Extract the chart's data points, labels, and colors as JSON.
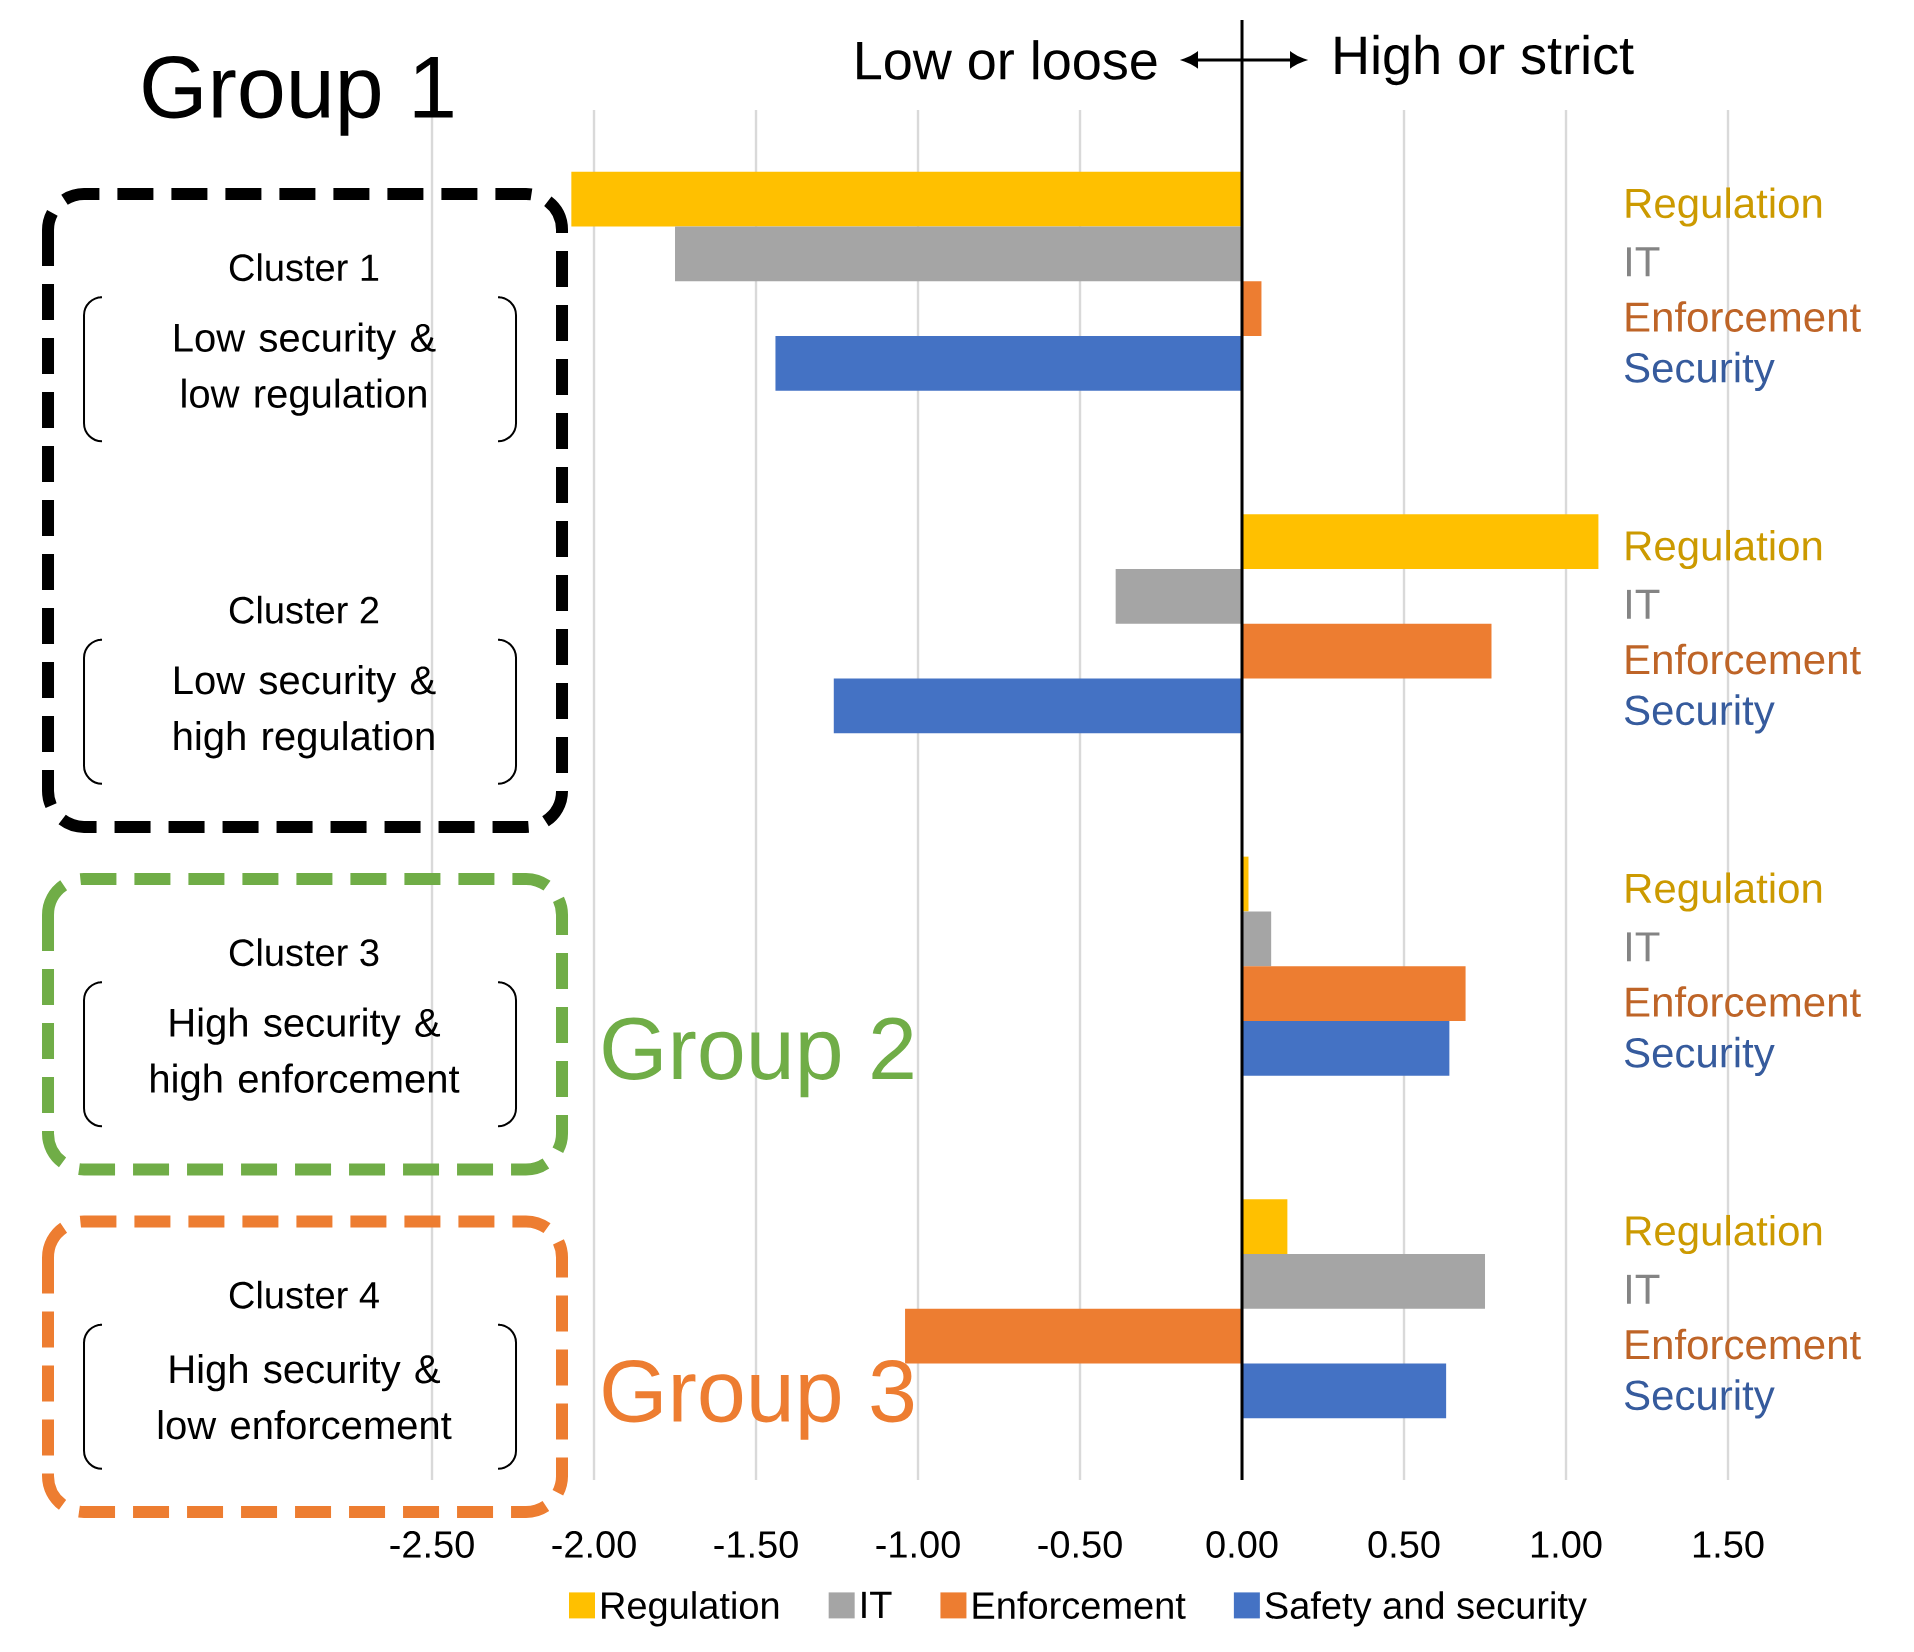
{
  "chart_data": {
    "type": "bar",
    "orientation": "horizontal",
    "categories": [
      "Cluster 1",
      "Cluster 2",
      "Cluster 3",
      "Cluster 4"
    ],
    "series": [
      {
        "name": "Regulation",
        "color": "#ffc000",
        "values": [
          -2.07,
          1.1,
          0.02,
          0.14
        ]
      },
      {
        "name": "IT",
        "color": "#a5a5a5",
        "values": [
          -1.75,
          -0.39,
          0.09,
          0.75
        ]
      },
      {
        "name": "Enforcement",
        "color": "#ed7d31",
        "values": [
          0.06,
          0.77,
          0.69,
          -1.04
        ]
      },
      {
        "name": "Safety and security",
        "color": "#4472c4",
        "values": [
          -1.44,
          -1.26,
          0.64,
          0.63
        ]
      }
    ],
    "xlim": [
      -2.5,
      1.5
    ],
    "xticks": [
      {
        "value": -2.5,
        "label": "-2.50"
      },
      {
        "value": -2.0,
        "label": "-2.00"
      },
      {
        "value": -1.5,
        "label": "-1.50"
      },
      {
        "value": -1.0,
        "label": "-1.00"
      },
      {
        "value": -0.5,
        "label": "-0.50"
      },
      {
        "value": 0,
        "label": "0.00"
      },
      {
        "value": 0.5,
        "label": "0.50"
      },
      {
        "value": 1.0,
        "label": "1.00"
      },
      {
        "value": 1.5,
        "label": "1.50"
      }
    ],
    "grid": true,
    "legend": "bottom",
    "annotations": [
      "Group 1",
      "Group 2",
      "Group 3",
      "Low or loose",
      "High or strict",
      "Low security & low regulation",
      "Regulation",
      "IT",
      "Enforcement",
      "Security",
      "Low security & high regulation",
      "Regulation",
      "IT",
      "Enforcement",
      "Security",
      "High security & high enforcement",
      "Regulation",
      "IT",
      "Enforcement",
      "Security",
      "High security & low enforcement",
      "Regulation",
      "IT",
      "Enforcement",
      "Security"
    ]
  }
}
